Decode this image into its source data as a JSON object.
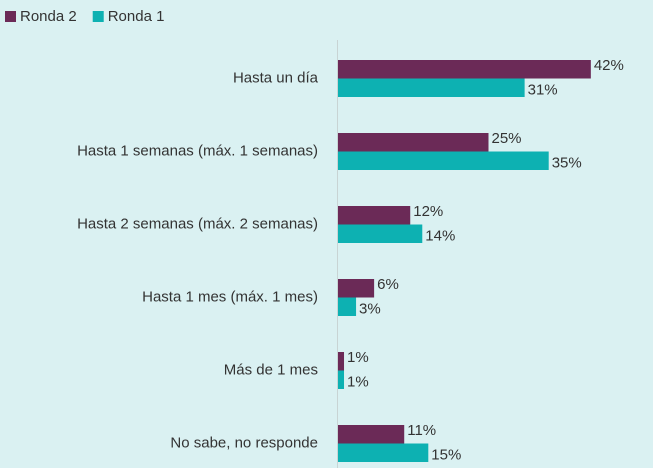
{
  "chart_data": {
    "type": "barh",
    "categories": [
      "Hasta un día",
      "Hasta 1 semanas (máx. 1 semanas)",
      "Hasta 2 semanas (máx. 2 semanas)",
      "Hasta 1 mes (máx. 1 mes)",
      "Más de 1 mes",
      "No sabe, no responde"
    ],
    "series": [
      {
        "name": "Ronda 2",
        "color": "#6b2a57",
        "values": [
          42,
          25,
          12,
          6,
          1,
          11
        ],
        "value_labels": [
          "42%",
          "25%",
          "12%",
          "6%",
          "1%",
          "11%"
        ]
      },
      {
        "name": "Ronda 1",
        "color": "#0db1b2",
        "values": [
          31,
          35,
          14,
          3,
          1,
          15
        ],
        "value_labels": [
          "31%",
          "35%",
          "14%",
          "3%",
          "1%",
          "15%"
        ]
      }
    ],
    "legend": "top-left"
  }
}
